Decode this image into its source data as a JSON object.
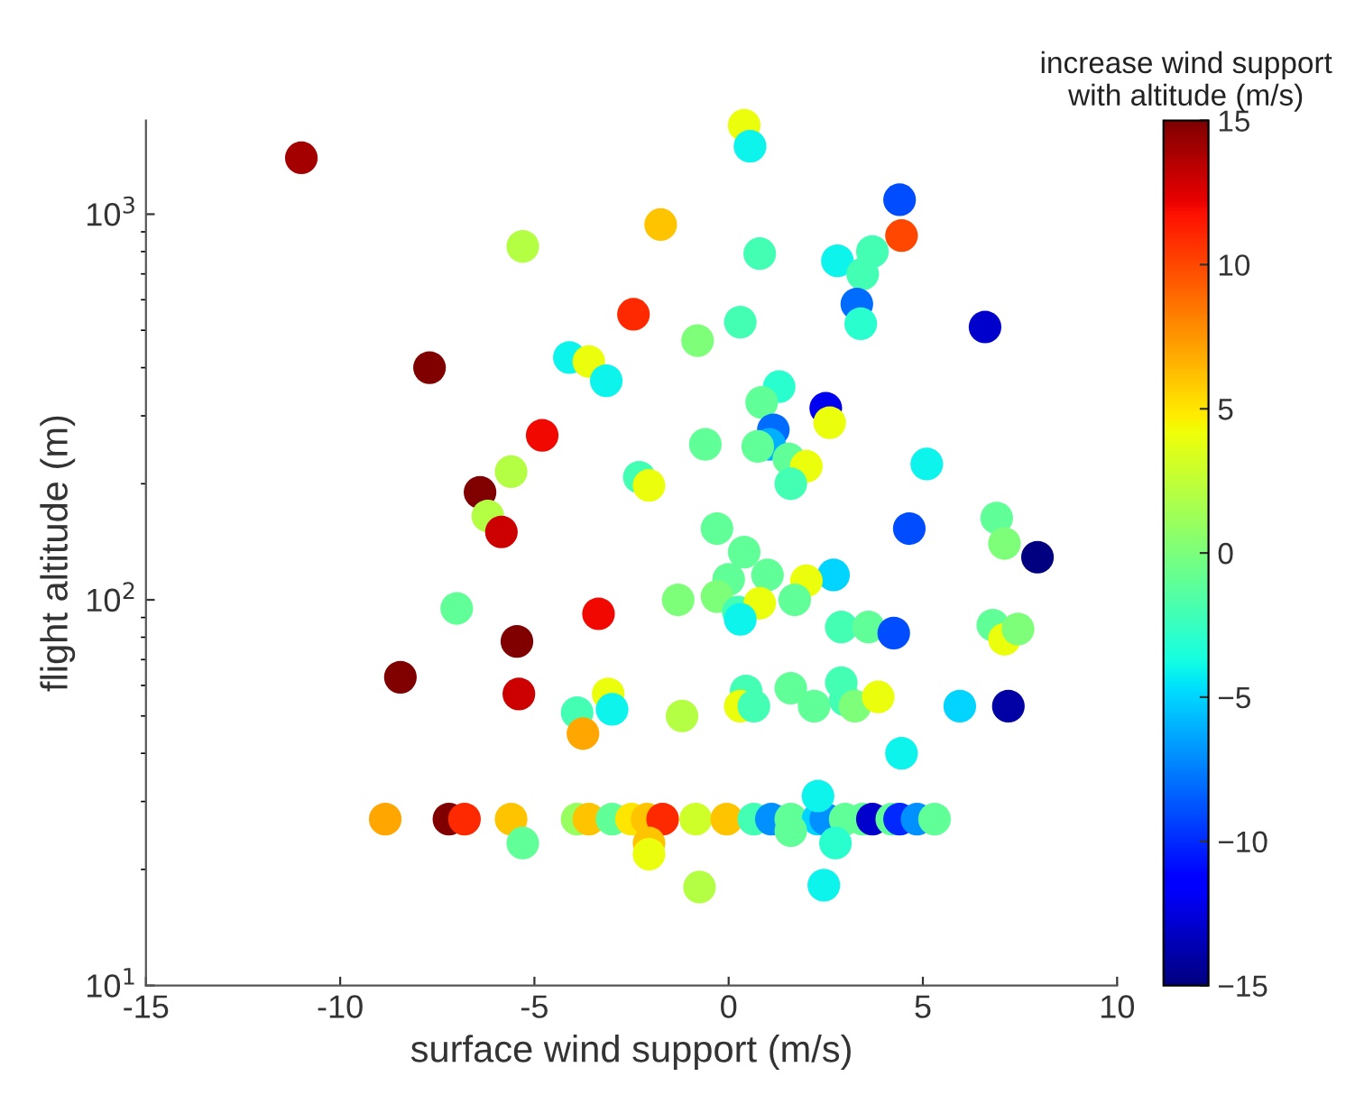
{
  "chart_data": {
    "type": "scatter",
    "xlabel": "surface wind support (m/s)",
    "ylabel": "flight altitude (m)",
    "clabel": "increase wind support\nwith altitude (m/s)",
    "log": "y",
    "grid": false,
    "marker": "circle",
    "xlim": [
      -15,
      10
    ],
    "xticks": [
      -15,
      -10,
      -5,
      0,
      5,
      10
    ],
    "ylim": [
      10,
      1750
    ],
    "yticks": [
      {
        "value": 10,
        "label": "10$^{1}$"
      },
      {
        "value": 100,
        "label": "10$^{2}$"
      },
      {
        "value": 1000,
        "label": "10$^{3}$"
      }
    ],
    "clim": [
      -15,
      15
    ],
    "cticks": [
      -15,
      -10,
      -5,
      0,
      5,
      10,
      15
    ],
    "series": [
      {
        "x": [
          -11.0,
          0.4,
          0.55,
          -1.75,
          -5.3,
          4.4,
          4.45,
          0.8,
          2.8,
          3.7,
          3.45,
          3.3,
          3.4,
          6.6,
          0.3,
          -2.45,
          -0.8,
          -7.7,
          -4.1,
          -3.6,
          -3.15,
          1.3,
          0.85,
          2.5,
          2.6,
          1.15,
          1.05,
          -4.8,
          -0.6,
          0.75,
          1.55,
          2.0,
          1.6,
          5.1,
          -5.6,
          -2.3,
          -2.05,
          -6.4,
          -6.2,
          -5.85,
          -0.3,
          0.4,
          4.65,
          6.9,
          7.1,
          7.95,
          2.7,
          1.0,
          2.0,
          1.7,
          0.0,
          -0.3,
          0.25,
          0.8,
          -1.3,
          0.3,
          -7.0,
          -3.35,
          6.8,
          7.1,
          7.45,
          2.9,
          3.6,
          4.25,
          -5.45,
          -8.45,
          -5.4,
          -3.1,
          -3.0,
          -3.9,
          -3.75,
          -1.2,
          0.45,
          0.3,
          0.65,
          1.6,
          2.2,
          2.9,
          3.0,
          3.25,
          3.85,
          5.95,
          7.2,
          4.45,
          -8.84,
          -7.2,
          -6.8,
          -5.6,
          -3.9,
          -3.6,
          -3.0,
          -2.5,
          -2.1,
          -1.7,
          -0.85,
          -0.05,
          0.65,
          1.1,
          1.6,
          2.3,
          2.5,
          3.0,
          3.45,
          3.7,
          4.2,
          4.4,
          4.85,
          5.3,
          -2.05,
          -2.05,
          -5.3,
          1.6,
          2.75,
          2.3,
          2.45,
          -0.75
        ],
        "values": [
          1400,
          1700,
          1500,
          940,
          825,
          1090,
          880,
          790,
          757,
          800,
          700,
          585,
          520,
          510,
          525,
          550,
          470,
          400,
          425,
          415,
          370,
          357,
          325,
          314,
          288,
          276,
          253,
          267,
          253,
          250,
          232,
          222,
          200,
          225,
          215,
          208,
          198,
          190,
          165,
          150,
          153,
          133,
          153,
          163,
          140,
          129,
          116,
          116,
          112,
          100,
          113,
          102,
          93,
          98,
          100,
          89,
          95,
          92,
          86,
          79,
          84,
          85,
          85,
          82,
          78,
          63,
          57,
          57,
          52,
          51,
          45,
          50,
          58,
          53,
          53,
          59,
          53,
          61,
          55,
          53,
          56,
          53,
          53,
          40,
          27,
          27,
          27,
          27,
          27,
          27,
          27,
          27,
          27,
          27,
          27,
          27,
          27,
          27,
          27,
          27,
          27,
          27,
          27,
          27,
          27,
          27,
          27,
          27,
          23.4,
          21.9,
          23.4,
          25.2,
          23.4,
          31,
          18.2,
          18
        ],
        "cvalues": [
          14,
          4,
          -4,
          6,
          2,
          -9,
          10,
          -2,
          -4,
          -2,
          -2,
          -8,
          -3,
          -13,
          -2,
          11,
          0,
          15,
          -4,
          4,
          -4,
          -3,
          -1,
          -12,
          4,
          -8,
          -6,
          12,
          -1,
          -1,
          -1,
          4,
          -2,
          -4,
          2,
          -2,
          4,
          15,
          2,
          13,
          -1,
          -1,
          -9,
          -1,
          0,
          -15,
          -5,
          -1,
          4,
          -1,
          -1,
          0,
          -2,
          4,
          0,
          -4,
          -1,
          12,
          -1,
          4,
          0,
          -2,
          -1,
          -9,
          15,
          15,
          13,
          4,
          -4,
          -2,
          7,
          2,
          -2,
          4,
          -2,
          -1,
          -1,
          -2,
          -2,
          0,
          4,
          -5,
          -14,
          -4,
          7,
          15,
          11,
          6,
          1,
          6,
          -1,
          5,
          6,
          11,
          3,
          6,
          -2,
          -7,
          -1,
          -5,
          -7,
          -1,
          -1,
          -13,
          -1,
          -10,
          -7,
          -1,
          6,
          4,
          -1,
          -1,
          -3,
          -4,
          -4,
          2
        ]
      }
    ]
  }
}
